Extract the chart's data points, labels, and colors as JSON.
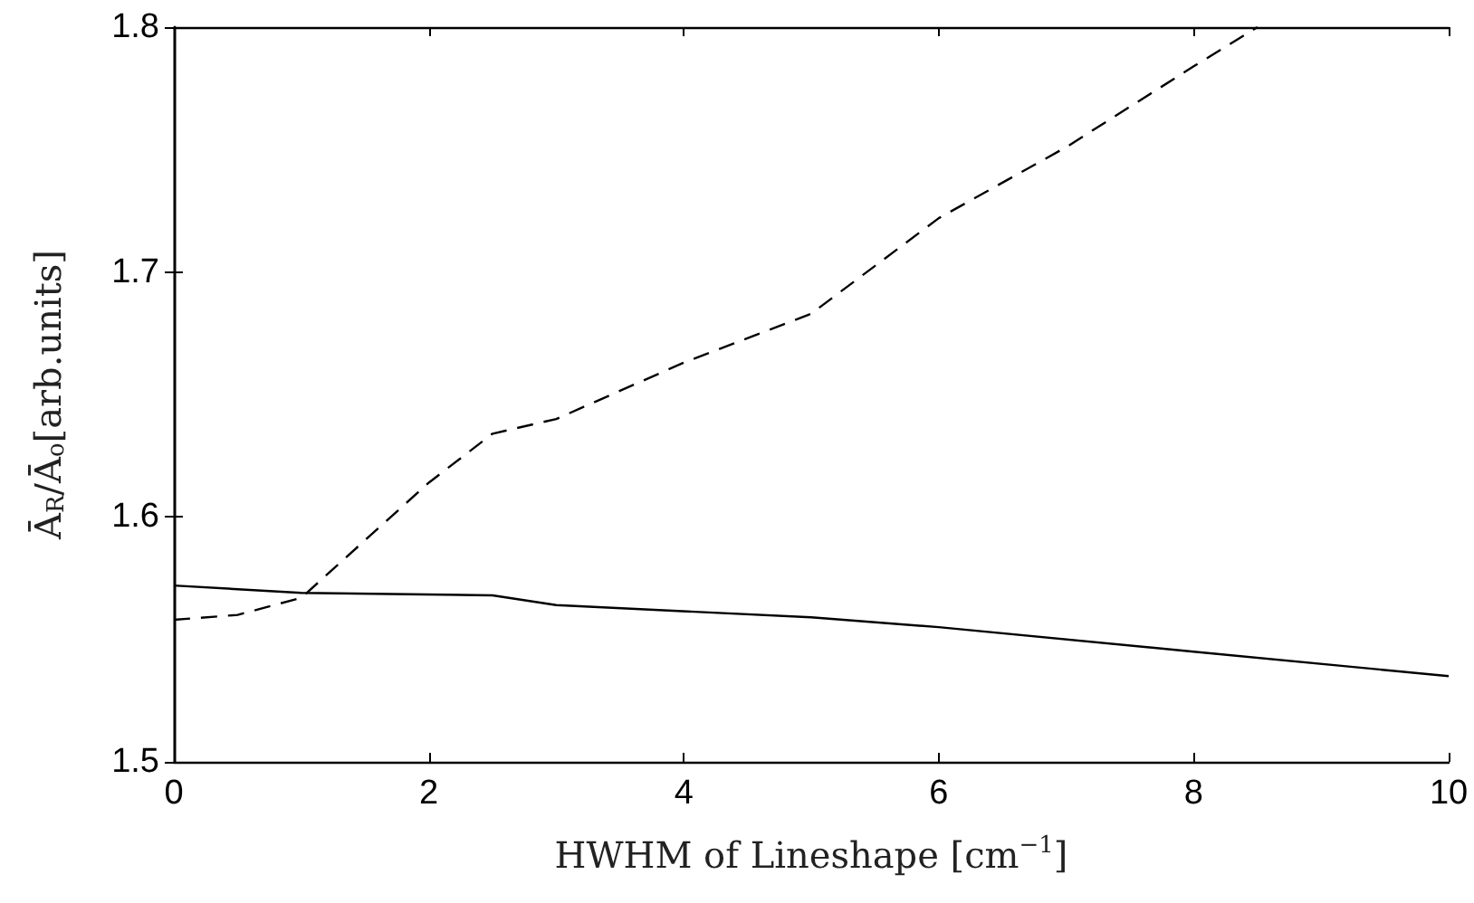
{
  "chart_data": {
    "type": "line",
    "xlabel": "HWHM of Lineshape [cm$^{−1}$]",
    "ylabel": "Ā$_{R}$/Ā$_{o}$[arb.units]",
    "xlim": [
      0,
      10
    ],
    "xticks": [
      0,
      2,
      4,
      6,
      8,
      10
    ],
    "ylim": [
      1.5,
      1.8
    ],
    "yticks": [
      1.5,
      1.6,
      1.7,
      1.8
    ],
    "grid": false,
    "marker": "none",
    "series": [
      {
        "color": "#000000",
        "line_style": "solid",
        "x": [
          0,
          1,
          2.5,
          3,
          5,
          6,
          8,
          10
        ],
        "values": [
          1.572,
          1.569,
          1.568,
          1.564,
          1.559,
          1.555,
          1.545,
          1.535
        ]
      },
      {
        "color": "#000000",
        "line_style": "dashed",
        "x": [
          0,
          0.5,
          1,
          2,
          2.5,
          3,
          4,
          5,
          6,
          7,
          8,
          8.5
        ],
        "values": [
          1.558,
          1.56,
          1.567,
          1.614,
          1.634,
          1.64,
          1.663,
          1.683,
          1.722,
          1.751,
          1.784,
          1.8
        ]
      }
    ]
  }
}
